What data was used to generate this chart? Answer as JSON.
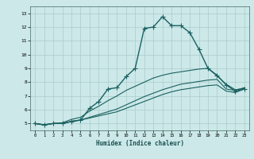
{
  "xlabel": "Humidex (Indice chaleur)",
  "ylabel": "",
  "xlim": [
    -0.5,
    23.5
  ],
  "ylim": [
    4.5,
    13.5
  ],
  "xticks": [
    0,
    1,
    2,
    3,
    4,
    5,
    6,
    7,
    8,
    9,
    10,
    11,
    12,
    13,
    14,
    15,
    16,
    17,
    18,
    19,
    20,
    21,
    22,
    23
  ],
  "yticks": [
    5,
    6,
    7,
    8,
    9,
    10,
    11,
    12,
    13
  ],
  "bg_color": "#cce8e8",
  "grid_color": "#aacccc",
  "line_color": "#1a6060",
  "lines": [
    {
      "x": [
        0,
        1,
        2,
        3,
        4,
        5,
        6,
        7,
        8,
        9,
        10,
        11,
        12,
        13,
        14,
        15,
        16,
        17,
        18,
        19,
        20,
        21,
        22,
        23
      ],
      "y": [
        5.0,
        4.9,
        5.0,
        5.0,
        5.15,
        5.25,
        6.1,
        6.6,
        7.5,
        7.6,
        8.4,
        9.0,
        11.9,
        12.0,
        12.75,
        12.1,
        12.1,
        11.6,
        10.4,
        9.0,
        8.5,
        7.8,
        7.35,
        7.5
      ],
      "marker": "+",
      "markersize": 4,
      "linewidth": 1.0
    },
    {
      "x": [
        0,
        1,
        2,
        3,
        4,
        5,
        6,
        7,
        8,
        9,
        10,
        11,
        12,
        13,
        14,
        15,
        16,
        17,
        18,
        19,
        20,
        21,
        22,
        23
      ],
      "y": [
        5.0,
        4.9,
        5.0,
        5.0,
        5.15,
        5.25,
        5.4,
        5.55,
        5.7,
        5.85,
        6.1,
        6.35,
        6.6,
        6.85,
        7.1,
        7.3,
        7.45,
        7.55,
        7.65,
        7.75,
        7.8,
        7.35,
        7.25,
        7.5
      ],
      "marker": null,
      "markersize": 0,
      "linewidth": 0.8
    },
    {
      "x": [
        0,
        1,
        2,
        3,
        4,
        5,
        6,
        7,
        8,
        9,
        10,
        11,
        12,
        13,
        14,
        15,
        16,
        17,
        18,
        19,
        20,
        21,
        22,
        23
      ],
      "y": [
        5.0,
        4.9,
        5.0,
        5.0,
        5.15,
        5.25,
        5.45,
        5.65,
        5.85,
        6.05,
        6.35,
        6.65,
        6.95,
        7.2,
        7.45,
        7.65,
        7.85,
        7.95,
        8.05,
        8.15,
        8.2,
        7.5,
        7.4,
        7.6
      ],
      "marker": null,
      "markersize": 0,
      "linewidth": 0.8
    },
    {
      "x": [
        0,
        1,
        2,
        3,
        4,
        5,
        6,
        7,
        8,
        9,
        10,
        11,
        12,
        13,
        14,
        15,
        16,
        17,
        18,
        19,
        20,
        21,
        22,
        23
      ],
      "y": [
        5.0,
        4.9,
        5.0,
        5.05,
        5.3,
        5.45,
        5.9,
        6.25,
        6.65,
        7.0,
        7.4,
        7.7,
        8.0,
        8.3,
        8.5,
        8.65,
        8.75,
        8.85,
        8.95,
        9.0,
        8.45,
        7.85,
        7.45,
        7.55
      ],
      "marker": null,
      "markersize": 0,
      "linewidth": 0.8
    }
  ]
}
